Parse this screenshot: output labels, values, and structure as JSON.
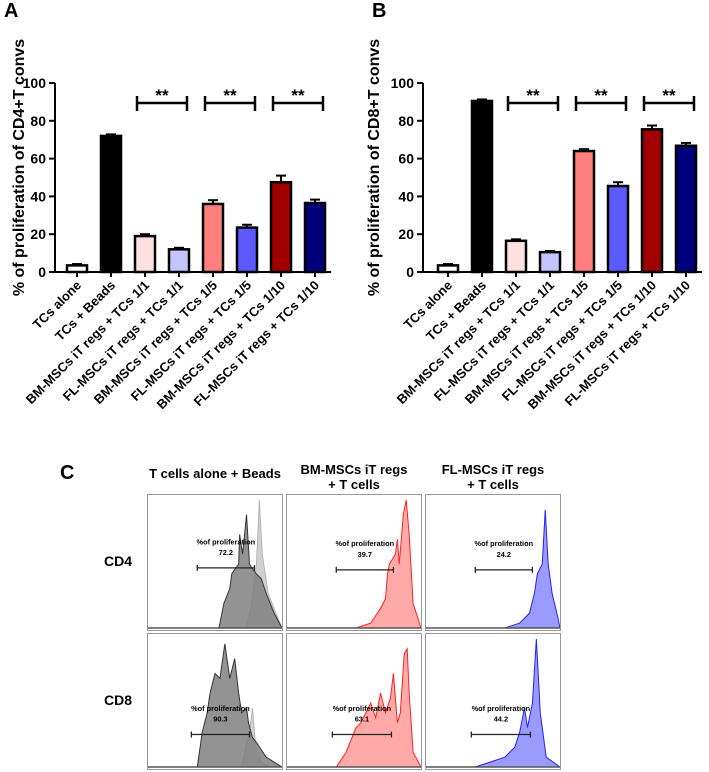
{
  "panels": {
    "a": "A",
    "b": "B",
    "c": "C"
  },
  "chart_data": [
    {
      "type": "bar",
      "panel": "A",
      "ylabel": "% of proliferation of CD4+T convs",
      "ylim": [
        0,
        100
      ],
      "yticks": [
        0,
        20,
        40,
        60,
        80,
        100
      ],
      "categories": [
        "TCs alone",
        "TCs + Beads",
        "BM-MSCs iT regs + TCs 1/1",
        "FL-MSCs iT regs + TCs 1/1",
        "BM-MSCs iT regs + TCs 1/5",
        "FL-MSCs iT regs + TCs 1/5",
        "BM-MSCs iT regs + TCs 1/10",
        "FL-MSCs iT regs + TCs 1/10"
      ],
      "values": [
        3.5,
        72,
        19,
        12,
        36,
        23.5,
        47.5,
        36.5
      ],
      "errors": [
        0.7,
        0.8,
        1,
        0.8,
        2,
        1.5,
        3.5,
        1.8
      ],
      "colors": [
        "#ffffff",
        "#000000",
        "#fde0e0",
        "#c4c4ff",
        "#ff7f7f",
        "#5a5aff",
        "#a00000",
        "#00007f"
      ],
      "significance": [
        {
          "pair": [
            2,
            3
          ],
          "label": "**"
        },
        {
          "pair": [
            4,
            5
          ],
          "label": "**"
        },
        {
          "pair": [
            6,
            7
          ],
          "label": "**"
        }
      ]
    },
    {
      "type": "bar",
      "panel": "B",
      "ylabel": "% of proliferation of CD8+T convs",
      "ylim": [
        0,
        100
      ],
      "yticks": [
        0,
        20,
        40,
        60,
        80,
        100
      ],
      "categories": [
        "TCs alone",
        "TCs + Beads",
        "BM-MSCs iT regs + TCs 1/1",
        "FL-MSCs iT regs + TCs 1/1",
        "BM-MSCs iT regs + TCs 1/5",
        "FL-MSCs iT regs + TCs 1/5",
        "BM-MSCs iT regs + TCs 1/10",
        "FL-MSCs iT regs + TCs 1/10"
      ],
      "values": [
        3.5,
        90.5,
        16.5,
        10.5,
        64,
        45.5,
        75.5,
        66.8
      ],
      "errors": [
        0.7,
        0.8,
        0.8,
        0.6,
        1,
        2,
        2,
        1.5
      ],
      "colors": [
        "#ffffff",
        "#000000",
        "#fde0e0",
        "#c4c4ff",
        "#ff7f7f",
        "#5a5aff",
        "#a00000",
        "#00007f"
      ],
      "significance": [
        {
          "pair": [
            2,
            3
          ],
          "label": "**"
        },
        {
          "pair": [
            4,
            5
          ],
          "label": "**"
        },
        {
          "pair": [
            6,
            7
          ],
          "label": "**"
        }
      ]
    }
  ],
  "flow": {
    "columns": [
      "T cells alone + Beads",
      "BM-MSCs iT regs\n+ T cells",
      "FL-MSCs iT regs\n+ T cells"
    ],
    "column_lines": [
      [
        "T cells alone + Beads"
      ],
      [
        "BM-MSCs iT regs",
        "+ T cells"
      ],
      [
        "FL-MSCs iT regs",
        "+ T cells"
      ]
    ],
    "rows": [
      "CD4",
      "CD8"
    ],
    "gate_label": "%of proliferation",
    "values": [
      [
        "72.2",
        "39.7",
        "24.2"
      ],
      [
        "90.3",
        "63.1",
        "44.2"
      ]
    ]
  }
}
